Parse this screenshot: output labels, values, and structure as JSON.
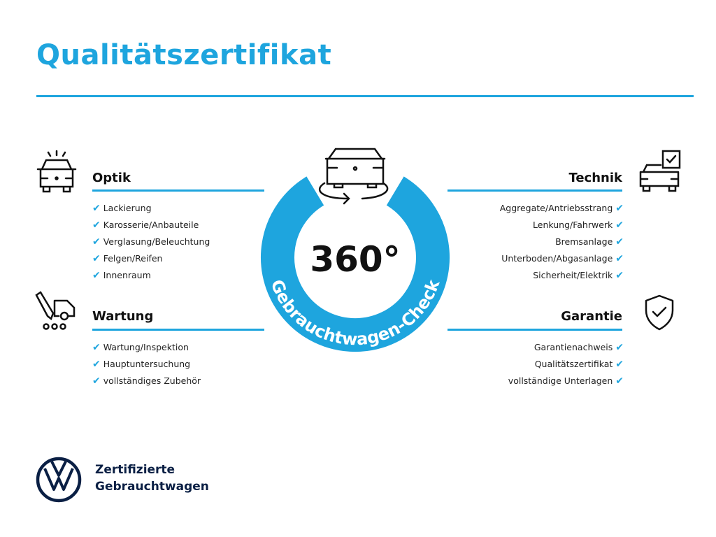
{
  "title": "Qualitätszertifikat",
  "center": {
    "value": "360°",
    "ring_text": "Gebrauchtwagen-Check"
  },
  "colors": {
    "accent": "#1ea5de",
    "text": "#111111",
    "brand": "#0a1f44"
  },
  "sections": {
    "optik": {
      "heading": "Optik",
      "icon": "car-lights-icon",
      "items": [
        "Lackierung",
        "Karosserie/Anbauteile",
        "Verglasung/Beleuchtung",
        "Felgen/Reifen",
        "Innenraum"
      ]
    },
    "wartung": {
      "heading": "Wartung",
      "icon": "service-tools-icon",
      "items": [
        "Wartung/Inspektion",
        "Hauptuntersuchung",
        "vollständiges Zubehör"
      ]
    },
    "technik": {
      "heading": "Technik",
      "icon": "car-checklist-icon",
      "items": [
        "Aggregate/Antriebsstrang",
        "Lenkung/Fahrwerk",
        "Bremsanlage",
        "Unterboden/Abgasanlage",
        "Sicherheit/Elektrik"
      ]
    },
    "garantie": {
      "heading": "Garantie",
      "icon": "shield-check-icon",
      "items": [
        "Garantienachweis",
        "Qualitätszertifikat",
        "vollständige Unterlagen"
      ]
    }
  },
  "brand": {
    "line1": "Zertifizierte",
    "line2": "Gebrauchtwagen",
    "logo": "vw-logo"
  }
}
